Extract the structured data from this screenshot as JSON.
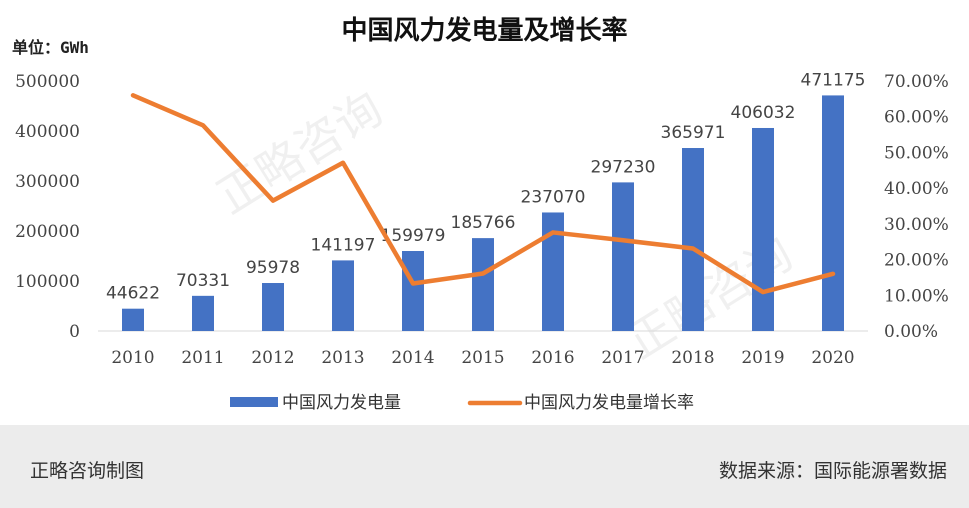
{
  "chart_data": {
    "type": "bar",
    "title": "中国风力发电量及增长率",
    "unit_label": "单位：GWh",
    "categories": [
      "2010",
      "2011",
      "2012",
      "2013",
      "2014",
      "2015",
      "2016",
      "2017",
      "2018",
      "2019",
      "2020"
    ],
    "series": [
      {
        "name": "中国风力发电量",
        "type": "bar",
        "axis": "left",
        "color": "#4472c4",
        "values": [
          44622,
          70331,
          95978,
          141197,
          159979,
          185766,
          237070,
          297230,
          365971,
          406032,
          471175
        ],
        "data_labels": [
          "44622",
          "70331",
          "95978",
          "141197",
          "159979",
          "185766",
          "237070",
          "297230",
          "365971",
          "406032",
          "471175"
        ]
      },
      {
        "name": "中国风力发电量增长率",
        "type": "line",
        "axis": "right",
        "color": "#ed7d31",
        "values": [
          0.66,
          0.576,
          0.365,
          0.471,
          0.133,
          0.161,
          0.276,
          0.254,
          0.231,
          0.109,
          0.16
        ]
      }
    ],
    "y_left": {
      "min": 0,
      "max": 500000,
      "ticks": [
        "0",
        "100000",
        "200000",
        "300000",
        "400000",
        "500000"
      ]
    },
    "y_right": {
      "min": 0,
      "max": 0.7,
      "ticks": [
        "0.00%",
        "10.00%",
        "20.00%",
        "30.00%",
        "40.00%",
        "50.00%",
        "60.00%",
        "70.00%"
      ]
    },
    "grid": false,
    "legend_position": "bottom"
  },
  "watermark": "正略咨询",
  "footer": {
    "left": "正略咨询制图",
    "right": "数据来源：国际能源署数据"
  }
}
